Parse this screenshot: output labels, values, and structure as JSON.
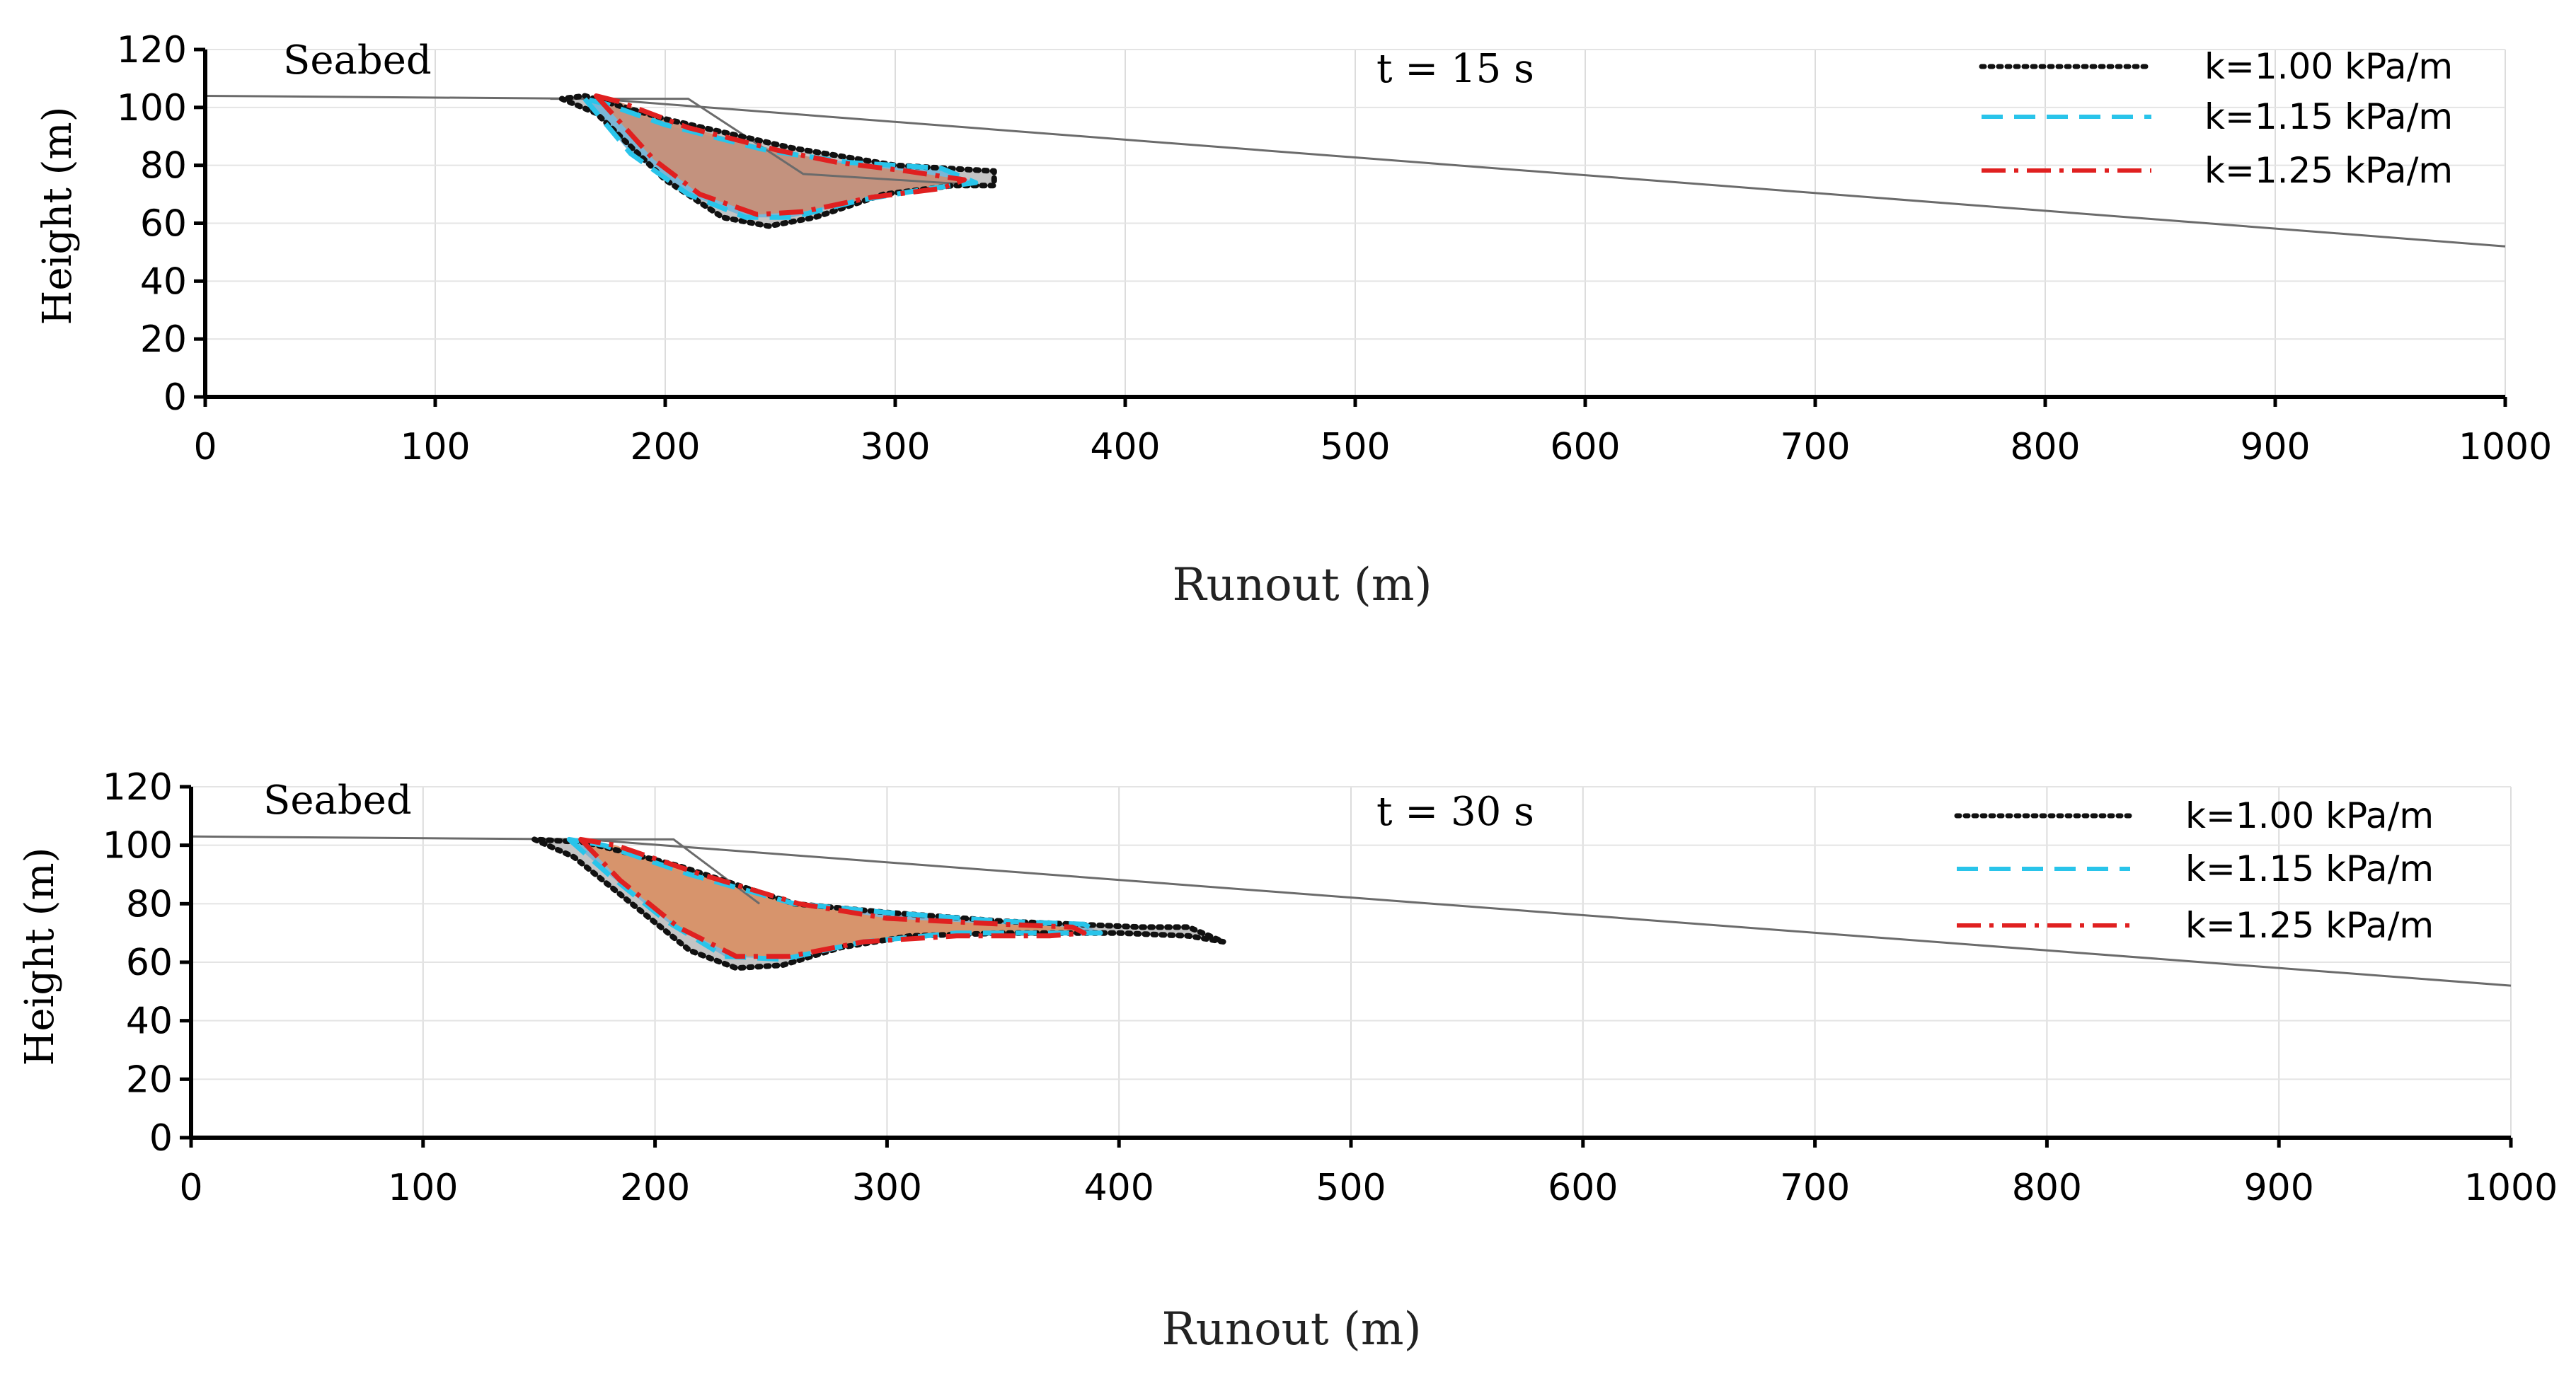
{
  "chart_data": [
    {
      "type": "area",
      "panel": "top",
      "time_label": "t  = 15 s",
      "seabed_label": "Seabed",
      "xlabel": "Runout  (m)",
      "ylabel": "Height (m)",
      "xlim": [
        0,
        1000
      ],
      "ylim": [
        0,
        120
      ],
      "xticks": [
        "0",
        "100",
        "200",
        "300",
        "400",
        "500",
        "600",
        "700",
        "800",
        "900",
        "1000"
      ],
      "yticks": [
        "0",
        "20",
        "40",
        "60",
        "80",
        "100",
        "120"
      ],
      "grid": true,
      "legend_position": "top-right",
      "seabed_line": [
        [
          0,
          104
        ],
        [
          170,
          103
        ],
        [
          1000,
          52
        ]
      ],
      "initial_slide": [
        [
          150,
          103
        ],
        [
          210,
          103
        ],
        [
          260,
          77
        ],
        [
          340,
          73
        ]
      ],
      "series": [
        {
          "name": "k=1.00 kPa/m",
          "color": "#111111",
          "fill": "#bcbcbc",
          "style": "dotted",
          "outline": [
            [
              155,
              103
            ],
            [
              170,
              98
            ],
            [
              200,
              75
            ],
            [
              225,
              62
            ],
            [
              245,
              59
            ],
            [
              265,
              62
            ],
            [
              295,
              70
            ],
            [
              325,
              73
            ],
            [
              343,
              73
            ],
            [
              343,
              78
            ],
            [
              300,
              80
            ],
            [
              255,
              86
            ],
            [
              200,
              96
            ],
            [
              165,
              104
            ]
          ]
        },
        {
          "name": "k=1.15 kPa/m",
          "color": "#29c4ea",
          "fill": "#6fb4d8",
          "style": "dashed",
          "outline": [
            [
              165,
              103
            ],
            [
              185,
              84
            ],
            [
              210,
              70
            ],
            [
              235,
              62
            ],
            [
              255,
              62
            ],
            [
              285,
              68
            ],
            [
              315,
              72
            ],
            [
              335,
              74
            ],
            [
              320,
              79
            ],
            [
              280,
              81
            ],
            [
              245,
              85
            ],
            [
              200,
              94
            ],
            [
              175,
              101
            ]
          ]
        },
        {
          "name": "k=1.25 kPa/m",
          "color": "#e02020",
          "fill": "#cd8d72",
          "style": "dashdot",
          "outline": [
            [
              170,
              104
            ],
            [
              195,
              82
            ],
            [
              215,
              70
            ],
            [
              240,
              63
            ],
            [
              260,
              64
            ],
            [
              290,
              69
            ],
            [
              320,
              72
            ],
            [
              330,
              75
            ],
            [
              305,
              78
            ],
            [
              275,
              81
            ],
            [
              250,
              85
            ],
            [
              210,
              93
            ],
            [
              180,
              102
            ]
          ]
        }
      ]
    },
    {
      "type": "area",
      "panel": "bottom",
      "time_label": "t  = 30 s",
      "seabed_label": "Seabed",
      "xlabel": "Runout  (m)",
      "ylabel": "Height (m)",
      "xlim": [
        0,
        1000
      ],
      "ylim": [
        0,
        120
      ],
      "xticks": [
        "0",
        "100",
        "200",
        "300",
        "400",
        "500",
        "600",
        "700",
        "800",
        "900",
        "1000"
      ],
      "yticks": [
        "0",
        "20",
        "40",
        "60",
        "80",
        "100",
        "120"
      ],
      "grid": true,
      "legend_position": "top-right",
      "seabed_line": [
        [
          0,
          103
        ],
        [
          170,
          102
        ],
        [
          1000,
          52
        ]
      ],
      "initial_slide": [
        [
          150,
          102
        ],
        [
          208,
          102
        ],
        [
          245,
          80
        ]
      ],
      "series": [
        {
          "name": "k=1.00 kPa/m",
          "color": "#111111",
          "fill": "#bcbcbc",
          "style": "dotted",
          "outline": [
            [
              148,
              102
            ],
            [
              165,
              96
            ],
            [
              190,
              80
            ],
            [
              215,
              64
            ],
            [
              235,
              58
            ],
            [
              255,
              59
            ],
            [
              280,
              65
            ],
            [
              310,
              69
            ],
            [
              350,
              70
            ],
            [
              400,
              70
            ],
            [
              430,
              69
            ],
            [
              445,
              67
            ],
            [
              430,
              72
            ],
            [
              410,
              72
            ],
            [
              350,
              74
            ],
            [
              300,
              77
            ],
            [
              260,
              80
            ],
            [
              210,
              93
            ],
            [
              170,
              101
            ]
          ]
        },
        {
          "name": "k=1.15 kPa/m",
          "color": "#29c4ea",
          "fill": "#7cb0d0",
          "style": "dashed",
          "outline": [
            [
              163,
              102
            ],
            [
              180,
              90
            ],
            [
              205,
              74
            ],
            [
              230,
              62
            ],
            [
              255,
              61
            ],
            [
              290,
              67
            ],
            [
              330,
              70
            ],
            [
              370,
              70
            ],
            [
              392,
              70
            ],
            [
              385,
              73
            ],
            [
              350,
              74
            ],
            [
              300,
              77
            ],
            [
              260,
              80
            ],
            [
              215,
              90
            ],
            [
              178,
              100
            ]
          ]
        },
        {
          "name": "k=1.25 kPa/m",
          "color": "#e02020",
          "fill": "#e3905e",
          "style": "dashdot",
          "outline": [
            [
              168,
              102
            ],
            [
              185,
              88
            ],
            [
              210,
              72
            ],
            [
              235,
              62
            ],
            [
              258,
              62
            ],
            [
              290,
              67
            ],
            [
              330,
              69
            ],
            [
              370,
              69
            ],
            [
              385,
              70
            ],
            [
              380,
              72
            ],
            [
              350,
              73
            ],
            [
              300,
              75
            ],
            [
              262,
              80
            ],
            [
              220,
              90
            ],
            [
              183,
              100
            ]
          ]
        }
      ]
    }
  ]
}
